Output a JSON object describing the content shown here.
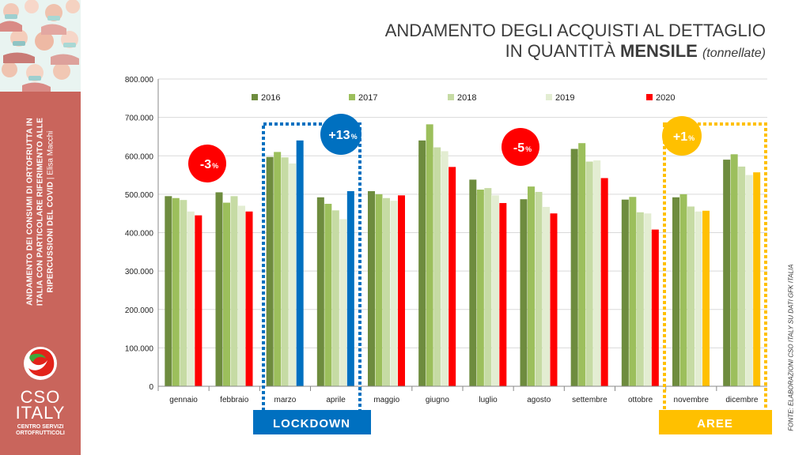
{
  "sidebar": {
    "text_line1": "ANDAMENTO DEI CONSUMI DI ORTOFRUTTA IN",
    "text_line2": "ITALIA CON PARTICOLARE RIFERIMENTO ALLE",
    "text_line3": "RIPERCUSSIONI DEL COVID",
    "author": "Elisa Macchi",
    "logo_name1": "CSO",
    "logo_name2": "ITALY",
    "logo_sub1": "CENTRO SERVIZI",
    "logo_sub2": "ORTOFRUTTICOLI"
  },
  "title": {
    "line1": "ANDAMENTO DEGLI ACQUISTI AL DETTAGLIO",
    "line2_prefix": "IN QUANTITÀ ",
    "line2_bold": "MENSILE",
    "line2_suffix": "(tonnellate)"
  },
  "source": "FONTE: ELABORAZIONI CSO ITALY SU DATI GFK ITALIA",
  "colors": {
    "y2016": "#6e8c3e",
    "y2017": "#9cbf5c",
    "y2018": "#c6dba4",
    "y2019": "#e3edd2",
    "y2020_red": "#ff0000",
    "y2020_blue": "#0070c0",
    "y2020_yellow": "#ffc000"
  },
  "annotations": {
    "lockdown": "LOCKDOWN",
    "aree": "AREE",
    "badge1": "-3",
    "badge2": "+13",
    "badge3": "-5",
    "badge4": "+1",
    "pct": "%"
  },
  "chart_data": {
    "type": "bar",
    "categories": [
      "gennaio",
      "febbraio",
      "marzo",
      "aprile",
      "maggio",
      "giugno",
      "luglio",
      "agosto",
      "settembre",
      "ottobre",
      "novembre",
      "dicembre"
    ],
    "series": [
      {
        "name": "2016",
        "values": [
          495000,
          505000,
          597000,
          492000,
          508000,
          640000,
          538000,
          487000,
          618000,
          486000,
          492000,
          590000
        ]
      },
      {
        "name": "2017",
        "values": [
          490000,
          478000,
          610000,
          475000,
          500000,
          682000,
          512000,
          520000,
          633000,
          493000,
          500000,
          604000
        ]
      },
      {
        "name": "2018",
        "values": [
          485000,
          495000,
          596000,
          458000,
          490000,
          622000,
          516000,
          506000,
          585000,
          453000,
          468000,
          572000
        ]
      },
      {
        "name": "2019",
        "values": [
          455000,
          470000,
          580000,
          435000,
          483000,
          612000,
          497000,
          467000,
          588000,
          450000,
          455000,
          550000
        ]
      },
      {
        "name": "2020",
        "values": [
          445000,
          455000,
          640000,
          508000,
          497000,
          571000,
          477000,
          450000,
          542000,
          408000,
          457000,
          557000
        ]
      }
    ],
    "ylim": [
      0,
      800000
    ],
    "yticks": [
      "0",
      "100.000",
      "200.000",
      "300.000",
      "400.000",
      "500.000",
      "600.000",
      "700.000",
      "800.000"
    ],
    "grid": true,
    "legend_position": "top"
  }
}
